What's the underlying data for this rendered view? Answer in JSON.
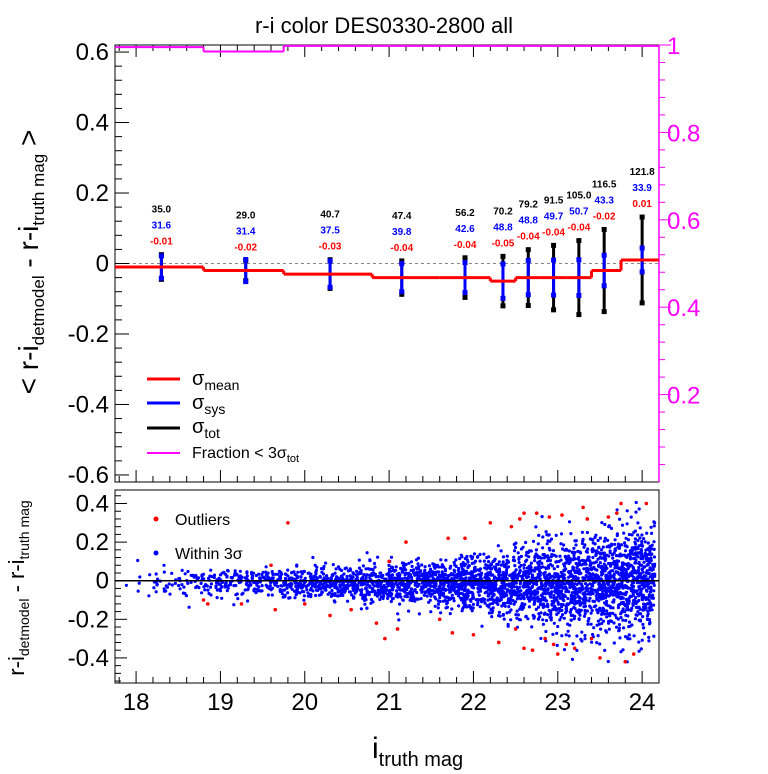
{
  "chart_data": [
    {
      "type": "line",
      "title": "r-i color DES0330-2800 all",
      "ylabel_left": "< r-i",
      "ylabel_left_sub1": "detmodel",
      "ylabel_left_mid": " - r-i",
      "ylabel_left_sub2": "truth mag",
      "ylabel_left_end": " >",
      "xlim": [
        17.75,
        24.2
      ],
      "ylim": [
        -0.62,
        0.62
      ],
      "y2lim": [
        0.0,
        1.0
      ],
      "x_ticks": [
        18,
        19,
        20,
        21,
        22,
        23,
        24
      ],
      "y_ticks": [
        -0.6,
        -0.4,
        -0.2,
        0,
        0.2,
        0.4,
        0.6
      ],
      "y_tick_labels": [
        "-0.6",
        "-0.4",
        "-0.2",
        "0",
        "0.2",
        "0.4",
        "0.6"
      ],
      "y2_ticks": [
        0.2,
        0.4,
        0.6,
        0.8,
        1.0
      ],
      "y2_tick_labels": [
        "0.2",
        "0.4",
        "0.6",
        "0.8",
        "1"
      ],
      "bin_edges": [
        17.75,
        18.8,
        19.75,
        20.8,
        21.6,
        22.2,
        22.5,
        22.8,
        23.1,
        23.4,
        23.75,
        24.2
      ],
      "bin_centers": [
        18.3,
        19.3,
        20.3,
        21.15,
        21.9,
        22.35,
        22.65,
        22.95,
        23.25,
        23.55,
        24.0
      ],
      "means": [
        -0.01,
        -0.02,
        -0.03,
        -0.04,
        -0.04,
        -0.05,
        -0.04,
        -0.04,
        -0.04,
        -0.02,
        0.01
      ],
      "err_tot": [
        0.035,
        0.029,
        0.0407,
        0.0474,
        0.0562,
        0.0702,
        0.0792,
        0.0915,
        0.105,
        0.1165,
        0.1218
      ],
      "err_sys": [
        0.0316,
        0.0314,
        0.0375,
        0.0398,
        0.0426,
        0.0488,
        0.0488,
        0.0497,
        0.0507,
        0.0433,
        0.0339
      ],
      "labels_tot": [
        "35.0",
        "29.0",
        "40.7",
        "47.4",
        "56.2",
        "70.2",
        "79.2",
        "91.5",
        "105.0",
        "116.5",
        "121.8"
      ],
      "labels_sys": [
        "31.6",
        "31.4",
        "37.5",
        "39.8",
        "42.6",
        "48.8",
        "48.8",
        "49.7",
        "50.7",
        "43.3",
        "33.9"
      ],
      "labels_mean": [
        "-0.01",
        "-0.02",
        "-0.03",
        "-0.04",
        "-0.04",
        "-0.05",
        "-0.04",
        "-0.04",
        "-0.04",
        "-0.02",
        "0.01"
      ],
      "fraction": [
        {
          "x0": 17.75,
          "x1": 18.8,
          "value": 0.995
        },
        {
          "x0": 18.8,
          "x1": 19.75,
          "value": 0.985
        },
        {
          "x0": 19.75,
          "x1": 24.2,
          "value": 0.998
        }
      ],
      "legend": {
        "mean": {
          "text": "σ",
          "sub": "mean"
        },
        "sys": {
          "text": "σ",
          "sub": "sys"
        },
        "tot": {
          "text": "σ",
          "sub": "tot"
        },
        "fraction": {
          "text": "Fraction < 3σ",
          "sub": "tot"
        }
      },
      "colors": {
        "mean": "#ff0000",
        "sys": "#0000ff",
        "tot": "#000000",
        "fraction": "#ff00ff"
      }
    },
    {
      "type": "scatter",
      "xlabel": "i",
      "xlabel_sub": "truth mag",
      "ylabel": "r-i",
      "ylabel_sub1": "detmodel",
      "ylabel_mid": " - r-i",
      "ylabel_sub2": "truth mag",
      "xlim": [
        17.75,
        24.2
      ],
      "ylim": [
        -0.53,
        0.47
      ],
      "x_ticks": [
        18,
        19,
        20,
        21,
        22,
        23,
        24
      ],
      "x_tick_labels": [
        "18",
        "19",
        "20",
        "21",
        "22",
        "23",
        "24"
      ],
      "y_ticks": [
        -0.4,
        -0.2,
        0,
        0.2,
        0.4
      ],
      "y_tick_labels": [
        "-0.4",
        "-0.2",
        "0",
        "0.2",
        "0.4"
      ],
      "legend": {
        "outliers": "Outliers",
        "within": "Within 3σ"
      },
      "colors": {
        "outliers": "#ff0000",
        "within": "#0000ff"
      },
      "outliers": [
        [
          18.8,
          -0.1
        ],
        [
          18.85,
          -0.12
        ],
        [
          19.25,
          -0.12
        ],
        [
          19.6,
          0.08
        ],
        [
          19.65,
          -0.15
        ],
        [
          19.8,
          0.3
        ],
        [
          20.0,
          -0.12
        ],
        [
          20.3,
          -0.18
        ],
        [
          20.55,
          -0.15
        ],
        [
          20.85,
          -0.22
        ],
        [
          20.95,
          -0.3
        ],
        [
          21.0,
          0.1
        ],
        [
          21.1,
          -0.25
        ],
        [
          21.2,
          0.2
        ],
        [
          21.6,
          -0.2
        ],
        [
          21.7,
          0.22
        ],
        [
          21.75,
          -0.27
        ],
        [
          21.9,
          0.22
        ],
        [
          22.0,
          -0.28
        ],
        [
          22.2,
          0.3
        ],
        [
          22.3,
          -0.32
        ],
        [
          22.45,
          0.28
        ],
        [
          22.5,
          -0.25
        ],
        [
          22.55,
          0.32
        ],
        [
          22.6,
          0.35
        ],
        [
          22.6,
          -0.35
        ],
        [
          22.7,
          -0.36
        ],
        [
          22.75,
          0.35
        ],
        [
          22.85,
          -0.3
        ],
        [
          22.9,
          0.33
        ],
        [
          22.95,
          -0.33
        ],
        [
          23.0,
          -0.38
        ],
        [
          23.05,
          0.34
        ],
        [
          23.1,
          -0.33
        ],
        [
          23.2,
          -0.35
        ],
        [
          23.3,
          0.38
        ],
        [
          23.35,
          0.32
        ],
        [
          23.4,
          -0.3
        ],
        [
          23.5,
          -0.4
        ],
        [
          23.6,
          0.33
        ],
        [
          23.7,
          0.35
        ],
        [
          23.75,
          0.4
        ],
        [
          23.8,
          -0.42
        ],
        [
          23.9,
          -0.38
        ],
        [
          24.05,
          0.4
        ]
      ]
    }
  ]
}
